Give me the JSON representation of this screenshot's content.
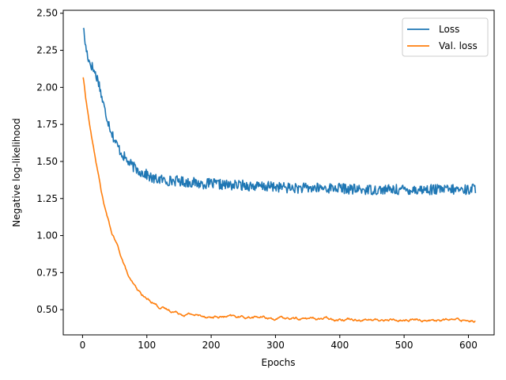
{
  "chart_data": {
    "type": "line",
    "title": "",
    "xlabel": "Epochs",
    "ylabel": "Negative log-likelihood",
    "xlim": [
      -30,
      640
    ],
    "ylim": [
      0.33,
      2.52
    ],
    "xticks": [
      0,
      100,
      200,
      300,
      400,
      500,
      600
    ],
    "yticks": [
      0.5,
      0.75,
      1.0,
      1.25,
      1.5,
      1.75,
      2.0,
      2.25,
      2.5
    ],
    "grid": false,
    "legend_position": "top-right",
    "series": [
      {
        "name": "Loss",
        "color": "#1f77b4",
        "x": [
          1,
          5,
          10,
          15,
          20,
          25,
          30,
          35,
          40,
          45,
          50,
          55,
          60,
          65,
          70,
          75,
          80,
          90,
          100,
          110,
          120,
          130,
          140,
          150,
          160,
          170,
          180,
          190,
          200,
          225,
          250,
          275,
          300,
          325,
          350,
          375,
          400,
          425,
          450,
          475,
          500,
          525,
          550,
          575,
          600,
          611
        ],
        "y": [
          2.41,
          2.27,
          2.18,
          2.14,
          2.09,
          2.04,
          1.93,
          1.84,
          1.77,
          1.7,
          1.64,
          1.6,
          1.56,
          1.53,
          1.5,
          1.48,
          1.46,
          1.43,
          1.41,
          1.38,
          1.38,
          1.37,
          1.37,
          1.37,
          1.36,
          1.36,
          1.35,
          1.35,
          1.35,
          1.34,
          1.34,
          1.33,
          1.33,
          1.32,
          1.32,
          1.32,
          1.32,
          1.31,
          1.31,
          1.31,
          1.31,
          1.31,
          1.31,
          1.31,
          1.31,
          1.32
        ],
        "noise": 0.035
      },
      {
        "name": "Val. loss",
        "color": "#ff7f0e",
        "x": [
          1,
          5,
          10,
          15,
          20,
          25,
          30,
          35,
          40,
          45,
          50,
          55,
          60,
          65,
          70,
          75,
          80,
          85,
          90,
          95,
          100,
          110,
          120,
          130,
          140,
          150,
          160,
          170,
          180,
          190,
          200,
          225,
          250,
          275,
          300,
          325,
          350,
          375,
          400,
          425,
          450,
          475,
          500,
          525,
          550,
          575,
          600,
          611
        ],
        "y": [
          2.07,
          1.93,
          1.78,
          1.64,
          1.52,
          1.4,
          1.28,
          1.18,
          1.1,
          1.02,
          0.97,
          0.92,
          0.86,
          0.8,
          0.74,
          0.69,
          0.66,
          0.63,
          0.61,
          0.59,
          0.57,
          0.55,
          0.52,
          0.5,
          0.49,
          0.48,
          0.47,
          0.47,
          0.46,
          0.46,
          0.45,
          0.45,
          0.45,
          0.45,
          0.44,
          0.44,
          0.44,
          0.44,
          0.44,
          0.44,
          0.43,
          0.43,
          0.43,
          0.43,
          0.43,
          0.43,
          0.43,
          0.43
        ],
        "noise": 0.018
      }
    ]
  }
}
